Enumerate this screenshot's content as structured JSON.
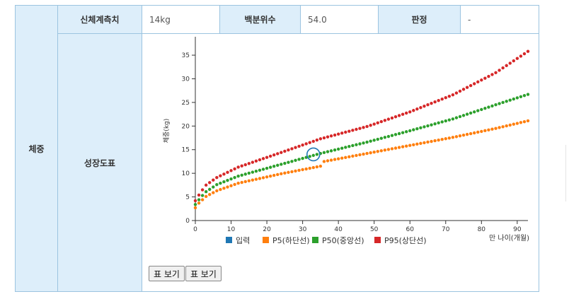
{
  "table": {
    "group_label": "체중",
    "measurement_label": "신체계측치",
    "measurement_value": "14kg",
    "percentile_label": "백분위수",
    "percentile_value": "54.0",
    "verdict_label": "판정",
    "verdict_value": "-",
    "chart_row_label": "성장도표"
  },
  "buttons": {
    "table_view_1": "표 보기",
    "table_view_2": "표 보기"
  },
  "colors": {
    "input": "#1f77b4",
    "p5": "#ff7f0e",
    "p50": "#2ca02c",
    "p95": "#d62728",
    "header_bg": "#ddeefa",
    "border": "#9cc4e0"
  },
  "chart_data": {
    "type": "scatter",
    "ylabel": "체중(kg)",
    "xlabel": "만 나이(개월)",
    "xlim": [
      0,
      93
    ],
    "ylim": [
      0,
      38
    ],
    "xticks": [
      0,
      10,
      20,
      30,
      40,
      50,
      60,
      70,
      80,
      90
    ],
    "yticks": [
      0,
      5,
      10,
      15,
      20,
      25,
      30,
      35
    ],
    "legend": [
      "입력",
      "P5(하단선)",
      "P50(중앙선)",
      "P95(상단선)"
    ],
    "input_point": {
      "x": 33,
      "y": 14
    },
    "series": [
      {
        "name": "P5(하단선)",
        "knots": [
          [
            0,
            2.7
          ],
          [
            1,
            3.7
          ],
          [
            2,
            4.4
          ],
          [
            3,
            5.1
          ],
          [
            6,
            6.3
          ],
          [
            12,
            7.9
          ],
          [
            24,
            9.9
          ],
          [
            35,
            11.5
          ],
          [
            36,
            12.5
          ],
          [
            48,
            14.2
          ],
          [
            60,
            15.9
          ],
          [
            72,
            17.6
          ],
          [
            84,
            19.5
          ],
          [
            93,
            21.1
          ]
        ]
      },
      {
        "name": "P50(중앙선)",
        "knots": [
          [
            0,
            3.4
          ],
          [
            1,
            4.4
          ],
          [
            2,
            5.3
          ],
          [
            3,
            6.1
          ],
          [
            6,
            7.6
          ],
          [
            12,
            9.4
          ],
          [
            24,
            11.9
          ],
          [
            35,
            14.2
          ],
          [
            48,
            16.6
          ],
          [
            60,
            19.0
          ],
          [
            72,
            21.5
          ],
          [
            84,
            24.5
          ],
          [
            93,
            26.7
          ]
        ]
      },
      {
        "name": "P95(상단선)",
        "knots": [
          [
            0,
            4.2
          ],
          [
            1,
            5.4
          ],
          [
            2,
            6.5
          ],
          [
            3,
            7.5
          ],
          [
            6,
            9.1
          ],
          [
            12,
            11.3
          ],
          [
            24,
            14.4
          ],
          [
            35,
            17.3
          ],
          [
            48,
            19.9
          ],
          [
            60,
            23.0
          ],
          [
            72,
            26.6
          ],
          [
            84,
            31.3
          ],
          [
            93,
            35.8
          ]
        ]
      }
    ]
  }
}
